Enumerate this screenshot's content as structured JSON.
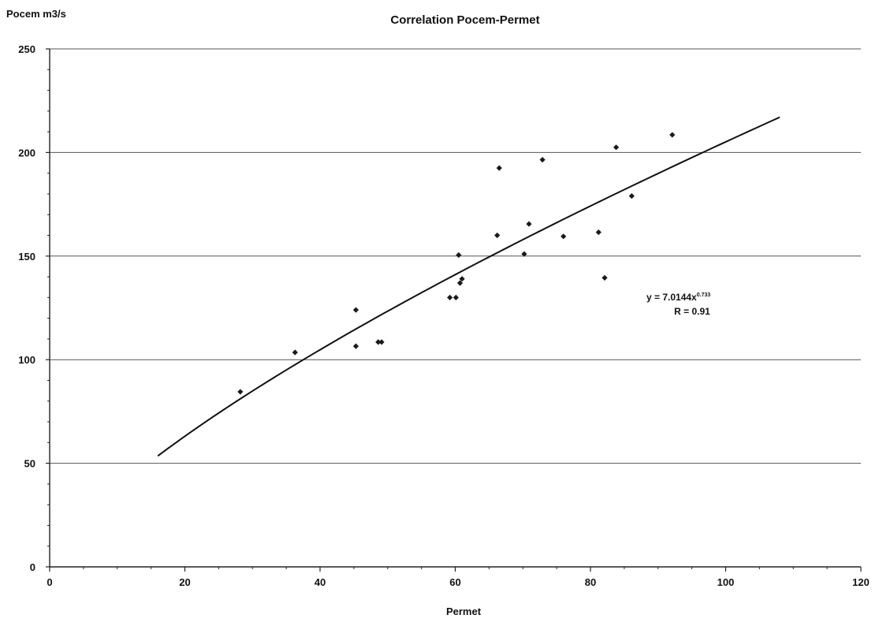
{
  "chart_data": {
    "type": "scatter",
    "title": "Correlation Pocem-Permet",
    "xlabel": "Permet",
    "ylabel": "Pocem m3/s",
    "xlim": [
      0,
      120
    ],
    "ylim": [
      0,
      250
    ],
    "x_ticks": [
      0,
      20,
      40,
      60,
      80,
      100,
      120
    ],
    "y_ticks": [
      0,
      50,
      100,
      150,
      200,
      250
    ],
    "x_tick_labels": [
      "0",
      "20",
      "40",
      "60",
      "80",
      "100",
      "120"
    ],
    "y_tick_labels": [
      "0",
      "50",
      "100",
      "150",
      "200",
      "250"
    ],
    "grid": "horizontal",
    "legend": "none",
    "series": [
      {
        "color": "#1a1a1a",
        "marker": "diamond",
        "points": [
          {
            "x": 28.2,
            "y": 84.5
          },
          {
            "x": 36.3,
            "y": 103.5
          },
          {
            "x": 45.3,
            "y": 124
          },
          {
            "x": 45.3,
            "y": 106.5
          },
          {
            "x": 48.6,
            "y": 108.5
          },
          {
            "x": 49.1,
            "y": 108.5
          },
          {
            "x": 59.2,
            "y": 130
          },
          {
            "x": 60.1,
            "y": 130
          },
          {
            "x": 60.5,
            "y": 150.5
          },
          {
            "x": 60.7,
            "y": 137
          },
          {
            "x": 61.0,
            "y": 139
          },
          {
            "x": 66.2,
            "y": 160
          },
          {
            "x": 66.5,
            "y": 192.5
          },
          {
            "x": 70.2,
            "y": 151
          },
          {
            "x": 70.9,
            "y": 165.5
          },
          {
            "x": 72.9,
            "y": 196.5
          },
          {
            "x": 76.0,
            "y": 159.5
          },
          {
            "x": 81.2,
            "y": 161.5
          },
          {
            "x": 82.1,
            "y": 139.5
          },
          {
            "x": 83.8,
            "y": 202.5
          },
          {
            "x": 86.1,
            "y": 179
          },
          {
            "x": 92.1,
            "y": 208.5
          }
        ]
      }
    ],
    "trendline": {
      "type": "power",
      "coefficient": 7.0144,
      "exponent": 0.733,
      "x_range": [
        16,
        108
      ]
    },
    "annotation": {
      "equation_prefix": "y = 7.0144x",
      "equation_exponent": "0.733",
      "r_text": "R = 0.91"
    }
  }
}
